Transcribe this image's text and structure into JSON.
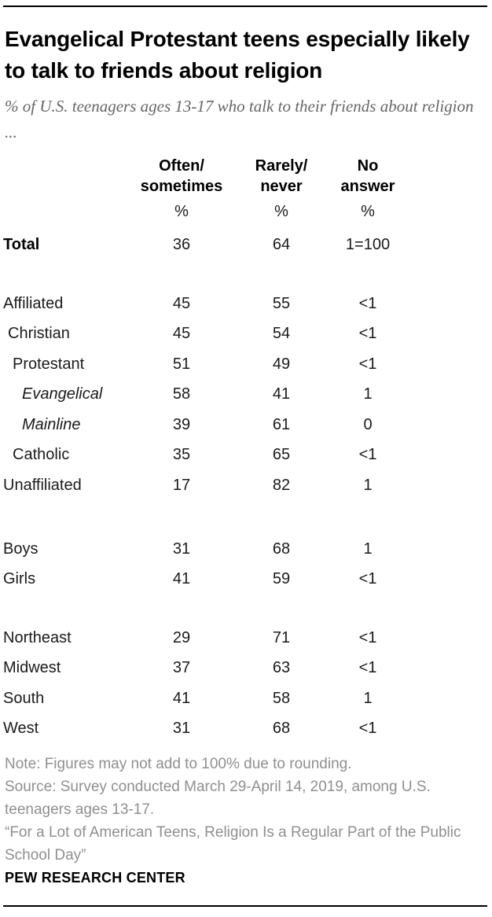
{
  "chart_data": {
    "type": "table",
    "title": "Evangelical Protestant teens especially likely to talk to friends about religion",
    "subtitle": "% of U.S. teenagers ages 13-17 who talk to their friends about religion ...",
    "columns": [
      {
        "label": "Often/sometimes",
        "line1": "Often/",
        "line2": "sometimes",
        "unit": "%"
      },
      {
        "label": "Rarely/never",
        "line1": "Rarely/",
        "line2": "never",
        "unit": "%"
      },
      {
        "label": "No answer",
        "line1": "",
        "line2": "No answer",
        "unit": "%"
      }
    ],
    "rows": [
      {
        "label": "Total",
        "values": [
          "36",
          "64",
          "1=100"
        ],
        "bold": true,
        "italic": false,
        "indent": 0
      },
      {
        "label": "Affiliated",
        "values": [
          "45",
          "55",
          "<1"
        ],
        "bold": false,
        "italic": false,
        "indent": 0
      },
      {
        "label": "Christian",
        "values": [
          "45",
          "54",
          "<1"
        ],
        "bold": false,
        "italic": false,
        "indent": 1
      },
      {
        "label": "Protestant",
        "values": [
          "51",
          "49",
          "<1"
        ],
        "bold": false,
        "italic": false,
        "indent": 2
      },
      {
        "label": "Evangelical",
        "values": [
          "58",
          "41",
          "1"
        ],
        "bold": false,
        "italic": true,
        "indent": 3
      },
      {
        "label": "Mainline",
        "values": [
          "39",
          "61",
          "0"
        ],
        "bold": false,
        "italic": true,
        "indent": 3
      },
      {
        "label": "Catholic",
        "values": [
          "35",
          "65",
          "<1"
        ],
        "bold": false,
        "italic": false,
        "indent": 2
      },
      {
        "label": "Unaffiliated",
        "values": [
          "17",
          "82",
          "1"
        ],
        "bold": false,
        "italic": false,
        "indent": 0
      },
      {
        "label": "Boys",
        "values": [
          "31",
          "68",
          "1"
        ],
        "bold": false,
        "italic": false,
        "indent": 0
      },
      {
        "label": "Girls",
        "values": [
          "41",
          "59",
          "<1"
        ],
        "bold": false,
        "italic": false,
        "indent": 0
      },
      {
        "label": "Northeast",
        "values": [
          "29",
          "71",
          "<1"
        ],
        "bold": false,
        "italic": false,
        "indent": 0
      },
      {
        "label": "Midwest",
        "values": [
          "37",
          "63",
          "<1"
        ],
        "bold": false,
        "italic": false,
        "indent": 0
      },
      {
        "label": "South",
        "values": [
          "41",
          "58",
          "1"
        ],
        "bold": false,
        "italic": false,
        "indent": 0
      },
      {
        "label": "West",
        "values": [
          "31",
          "68",
          "<1"
        ],
        "bold": false,
        "italic": false,
        "indent": 0
      }
    ]
  },
  "footer": {
    "note": "Note: Figures may not add to 100% due to rounding.",
    "source": "Source: Survey conducted March 29-April 14, 2019, among U.S. teenagers ages 13-17.",
    "quote": "“For a Lot of American Teens, Religion Is a Regular Part of the Public School Day”",
    "brand": "PEW RESEARCH CENTER"
  },
  "colors": {
    "rule": "#000000",
    "title": "#000000",
    "subtitle": "#666666",
    "body": "#1a1a1a",
    "footnote": "#8f8f8f"
  }
}
